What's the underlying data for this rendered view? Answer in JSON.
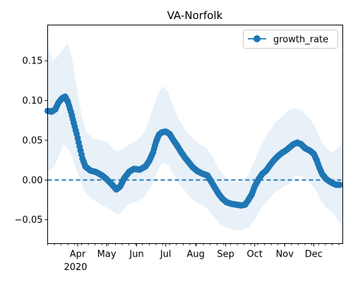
{
  "chart_data": {
    "type": "line",
    "title": "VA-Norfolk",
    "xlabel": "",
    "ylabel": "",
    "x_start": "2020-03-01",
    "x_end": "2020-12-31",
    "xlim": [
      "2020-03-01",
      "2020-12-31"
    ],
    "ylim": [
      -0.08,
      0.195
    ],
    "x_ticks": [
      {
        "date": "2020-04-01",
        "label": "Apr"
      },
      {
        "date": "2020-05-01",
        "label": "May"
      },
      {
        "date": "2020-06-01",
        "label": "Jun"
      },
      {
        "date": "2020-07-01",
        "label": "Jul"
      },
      {
        "date": "2020-08-01",
        "label": "Aug"
      },
      {
        "date": "2020-09-01",
        "label": "Sep"
      },
      {
        "date": "2020-10-01",
        "label": "Oct"
      },
      {
        "date": "2020-11-01",
        "label": "Nov"
      },
      {
        "date": "2020-12-01",
        "label": "Dec"
      }
    ],
    "year_label": "2020",
    "y_ticks": [
      -0.05,
      0.0,
      0.05,
      0.1,
      0.15
    ],
    "y_tick_labels": [
      "−0.05",
      "0.00",
      "0.05",
      "0.10",
      "0.15"
    ],
    "reference_line": {
      "y": 0.0,
      "style": "dashed"
    },
    "grid": false,
    "legend": {
      "position": "top-right",
      "entries": [
        "growth_rate"
      ]
    },
    "series": [
      {
        "name": "growth_rate",
        "color": "#1f77b4",
        "marker": "circle",
        "points": [
          {
            "x": "2020-03-01",
            "y": 0.087
          },
          {
            "x": "2020-03-05",
            "y": 0.086
          },
          {
            "x": "2020-03-09",
            "y": 0.089
          },
          {
            "x": "2020-03-12",
            "y": 0.097
          },
          {
            "x": "2020-03-16",
            "y": 0.103
          },
          {
            "x": "2020-03-19",
            "y": 0.105
          },
          {
            "x": "2020-03-22",
            "y": 0.098
          },
          {
            "x": "2020-03-25",
            "y": 0.086
          },
          {
            "x": "2020-03-28",
            "y": 0.072
          },
          {
            "x": "2020-03-31",
            "y": 0.058
          },
          {
            "x": "2020-04-03",
            "y": 0.042
          },
          {
            "x": "2020-04-06",
            "y": 0.027
          },
          {
            "x": "2020-04-09",
            "y": 0.017
          },
          {
            "x": "2020-04-14",
            "y": 0.012
          },
          {
            "x": "2020-04-20",
            "y": 0.01
          },
          {
            "x": "2020-04-26",
            "y": 0.006
          },
          {
            "x": "2020-05-01",
            "y": 0.001
          },
          {
            "x": "2020-05-06",
            "y": -0.005
          },
          {
            "x": "2020-05-11",
            "y": -0.012
          },
          {
            "x": "2020-05-15",
            "y": -0.008
          },
          {
            "x": "2020-05-19",
            "y": 0.002
          },
          {
            "x": "2020-05-24",
            "y": 0.01
          },
          {
            "x": "2020-05-29",
            "y": 0.014
          },
          {
            "x": "2020-06-04",
            "y": 0.013
          },
          {
            "x": "2020-06-10",
            "y": 0.017
          },
          {
            "x": "2020-06-14",
            "y": 0.024
          },
          {
            "x": "2020-06-18",
            "y": 0.035
          },
          {
            "x": "2020-06-21",
            "y": 0.048
          },
          {
            "x": "2020-06-24",
            "y": 0.057
          },
          {
            "x": "2020-06-27",
            "y": 0.06
          },
          {
            "x": "2020-07-01",
            "y": 0.061
          },
          {
            "x": "2020-07-05",
            "y": 0.058
          },
          {
            "x": "2020-07-09",
            "y": 0.05
          },
          {
            "x": "2020-07-13",
            "y": 0.043
          },
          {
            "x": "2020-07-17",
            "y": 0.035
          },
          {
            "x": "2020-07-21",
            "y": 0.028
          },
          {
            "x": "2020-07-25",
            "y": 0.022
          },
          {
            "x": "2020-07-29",
            "y": 0.016
          },
          {
            "x": "2020-08-03",
            "y": 0.011
          },
          {
            "x": "2020-08-08",
            "y": 0.008
          },
          {
            "x": "2020-08-13",
            "y": 0.006
          },
          {
            "x": "2020-08-17",
            "y": -0.002
          },
          {
            "x": "2020-08-21",
            "y": -0.01
          },
          {
            "x": "2020-08-25",
            "y": -0.018
          },
          {
            "x": "2020-08-29",
            "y": -0.024
          },
          {
            "x": "2020-09-02",
            "y": -0.028
          },
          {
            "x": "2020-09-07",
            "y": -0.03
          },
          {
            "x": "2020-09-12",
            "y": -0.031
          },
          {
            "x": "2020-09-17",
            "y": -0.032
          },
          {
            "x": "2020-09-21",
            "y": -0.031
          },
          {
            "x": "2020-09-24",
            "y": -0.026
          },
          {
            "x": "2020-09-28",
            "y": -0.018
          },
          {
            "x": "2020-10-01",
            "y": -0.008
          },
          {
            "x": "2020-10-05",
            "y": 0.001
          },
          {
            "x": "2020-10-09",
            "y": 0.008
          },
          {
            "x": "2020-10-13",
            "y": 0.012
          },
          {
            "x": "2020-10-17",
            "y": 0.019
          },
          {
            "x": "2020-10-21",
            "y": 0.025
          },
          {
            "x": "2020-10-25",
            "y": 0.03
          },
          {
            "x": "2020-10-29",
            "y": 0.034
          },
          {
            "x": "2020-11-02",
            "y": 0.037
          },
          {
            "x": "2020-11-06",
            "y": 0.041
          },
          {
            "x": "2020-11-10",
            "y": 0.045
          },
          {
            "x": "2020-11-14",
            "y": 0.047
          },
          {
            "x": "2020-11-18",
            "y": 0.045
          },
          {
            "x": "2020-11-22",
            "y": 0.04
          },
          {
            "x": "2020-11-27",
            "y": 0.037
          },
          {
            "x": "2020-12-01",
            "y": 0.033
          },
          {
            "x": "2020-12-04",
            "y": 0.025
          },
          {
            "x": "2020-12-07",
            "y": 0.015
          },
          {
            "x": "2020-12-10",
            "y": 0.007
          },
          {
            "x": "2020-12-14",
            "y": 0.001
          },
          {
            "x": "2020-12-19",
            "y": -0.003
          },
          {
            "x": "2020-12-24",
            "y": -0.006
          },
          {
            "x": "2020-12-28",
            "y": -0.006
          }
        ],
        "band": {
          "color": "#e8f0f8",
          "points": [
            {
              "x": "2020-03-01",
              "lower": 0.01,
              "upper": 0.172
            },
            {
              "x": "2020-03-06",
              "lower": 0.015,
              "upper": 0.15
            },
            {
              "x": "2020-03-11",
              "lower": 0.025,
              "upper": 0.155
            },
            {
              "x": "2020-03-17",
              "lower": 0.045,
              "upper": 0.165
            },
            {
              "x": "2020-03-22",
              "lower": 0.04,
              "upper": 0.172
            },
            {
              "x": "2020-03-26",
              "lower": 0.03,
              "upper": 0.155
            },
            {
              "x": "2020-03-31",
              "lower": 0.012,
              "upper": 0.118
            },
            {
              "x": "2020-04-05",
              "lower": -0.005,
              "upper": 0.082
            },
            {
              "x": "2020-04-10",
              "lower": -0.018,
              "upper": 0.06
            },
            {
              "x": "2020-04-17",
              "lower": -0.025,
              "upper": 0.052
            },
            {
              "x": "2020-04-24",
              "lower": -0.03,
              "upper": 0.05
            },
            {
              "x": "2020-05-01",
              "lower": -0.035,
              "upper": 0.048
            },
            {
              "x": "2020-05-08",
              "lower": -0.04,
              "upper": 0.038
            },
            {
              "x": "2020-05-13",
              "lower": -0.044,
              "upper": 0.036
            },
            {
              "x": "2020-05-18",
              "lower": -0.038,
              "upper": 0.04
            },
            {
              "x": "2020-05-25",
              "lower": -0.03,
              "upper": 0.045
            },
            {
              "x": "2020-06-01",
              "lower": -0.027,
              "upper": 0.05
            },
            {
              "x": "2020-06-08",
              "lower": -0.022,
              "upper": 0.058
            },
            {
              "x": "2020-06-14",
              "lower": -0.012,
              "upper": 0.075
            },
            {
              "x": "2020-06-19",
              "lower": 0.0,
              "upper": 0.095
            },
            {
              "x": "2020-06-24",
              "lower": 0.015,
              "upper": 0.11
            },
            {
              "x": "2020-06-28",
              "lower": 0.022,
              "upper": 0.118
            },
            {
              "x": "2020-07-03",
              "lower": 0.02,
              "upper": 0.112
            },
            {
              "x": "2020-07-08",
              "lower": 0.01,
              "upper": 0.095
            },
            {
              "x": "2020-07-15",
              "lower": -0.005,
              "upper": 0.075
            },
            {
              "x": "2020-07-22",
              "lower": -0.015,
              "upper": 0.062
            },
            {
              "x": "2020-07-29",
              "lower": -0.025,
              "upper": 0.052
            },
            {
              "x": "2020-08-05",
              "lower": -0.03,
              "upper": 0.045
            },
            {
              "x": "2020-08-12",
              "lower": -0.035,
              "upper": 0.04
            },
            {
              "x": "2020-08-19",
              "lower": -0.045,
              "upper": 0.028
            },
            {
              "x": "2020-08-26",
              "lower": -0.055,
              "upper": 0.012
            },
            {
              "x": "2020-09-02",
              "lower": -0.06,
              "upper": 0.002
            },
            {
              "x": "2020-09-10",
              "lower": -0.063,
              "upper": -0.003
            },
            {
              "x": "2020-09-18",
              "lower": -0.063,
              "upper": -0.002
            },
            {
              "x": "2020-09-25",
              "lower": -0.06,
              "upper": 0.008
            },
            {
              "x": "2020-10-01",
              "lower": -0.05,
              "upper": 0.025
            },
            {
              "x": "2020-10-08",
              "lower": -0.035,
              "upper": 0.045
            },
            {
              "x": "2020-10-15",
              "lower": -0.025,
              "upper": 0.06
            },
            {
              "x": "2020-10-22",
              "lower": -0.015,
              "upper": 0.072
            },
            {
              "x": "2020-10-29",
              "lower": -0.01,
              "upper": 0.08
            },
            {
              "x": "2020-11-05",
              "lower": -0.005,
              "upper": 0.088
            },
            {
              "x": "2020-11-12",
              "lower": 0.005,
              "upper": 0.09
            },
            {
              "x": "2020-11-18",
              "lower": 0.005,
              "upper": 0.088
            },
            {
              "x": "2020-11-25",
              "lower": 0.0,
              "upper": 0.08
            },
            {
              "x": "2020-12-02",
              "lower": -0.01,
              "upper": 0.068
            },
            {
              "x": "2020-12-08",
              "lower": -0.025,
              "upper": 0.05
            },
            {
              "x": "2020-12-14",
              "lower": -0.035,
              "upper": 0.04
            },
            {
              "x": "2020-12-20",
              "lower": -0.04,
              "upper": 0.035
            },
            {
              "x": "2020-12-26",
              "lower": -0.05,
              "upper": 0.04
            },
            {
              "x": "2020-12-31",
              "lower": -0.06,
              "upper": 0.045
            }
          ]
        }
      }
    ]
  }
}
